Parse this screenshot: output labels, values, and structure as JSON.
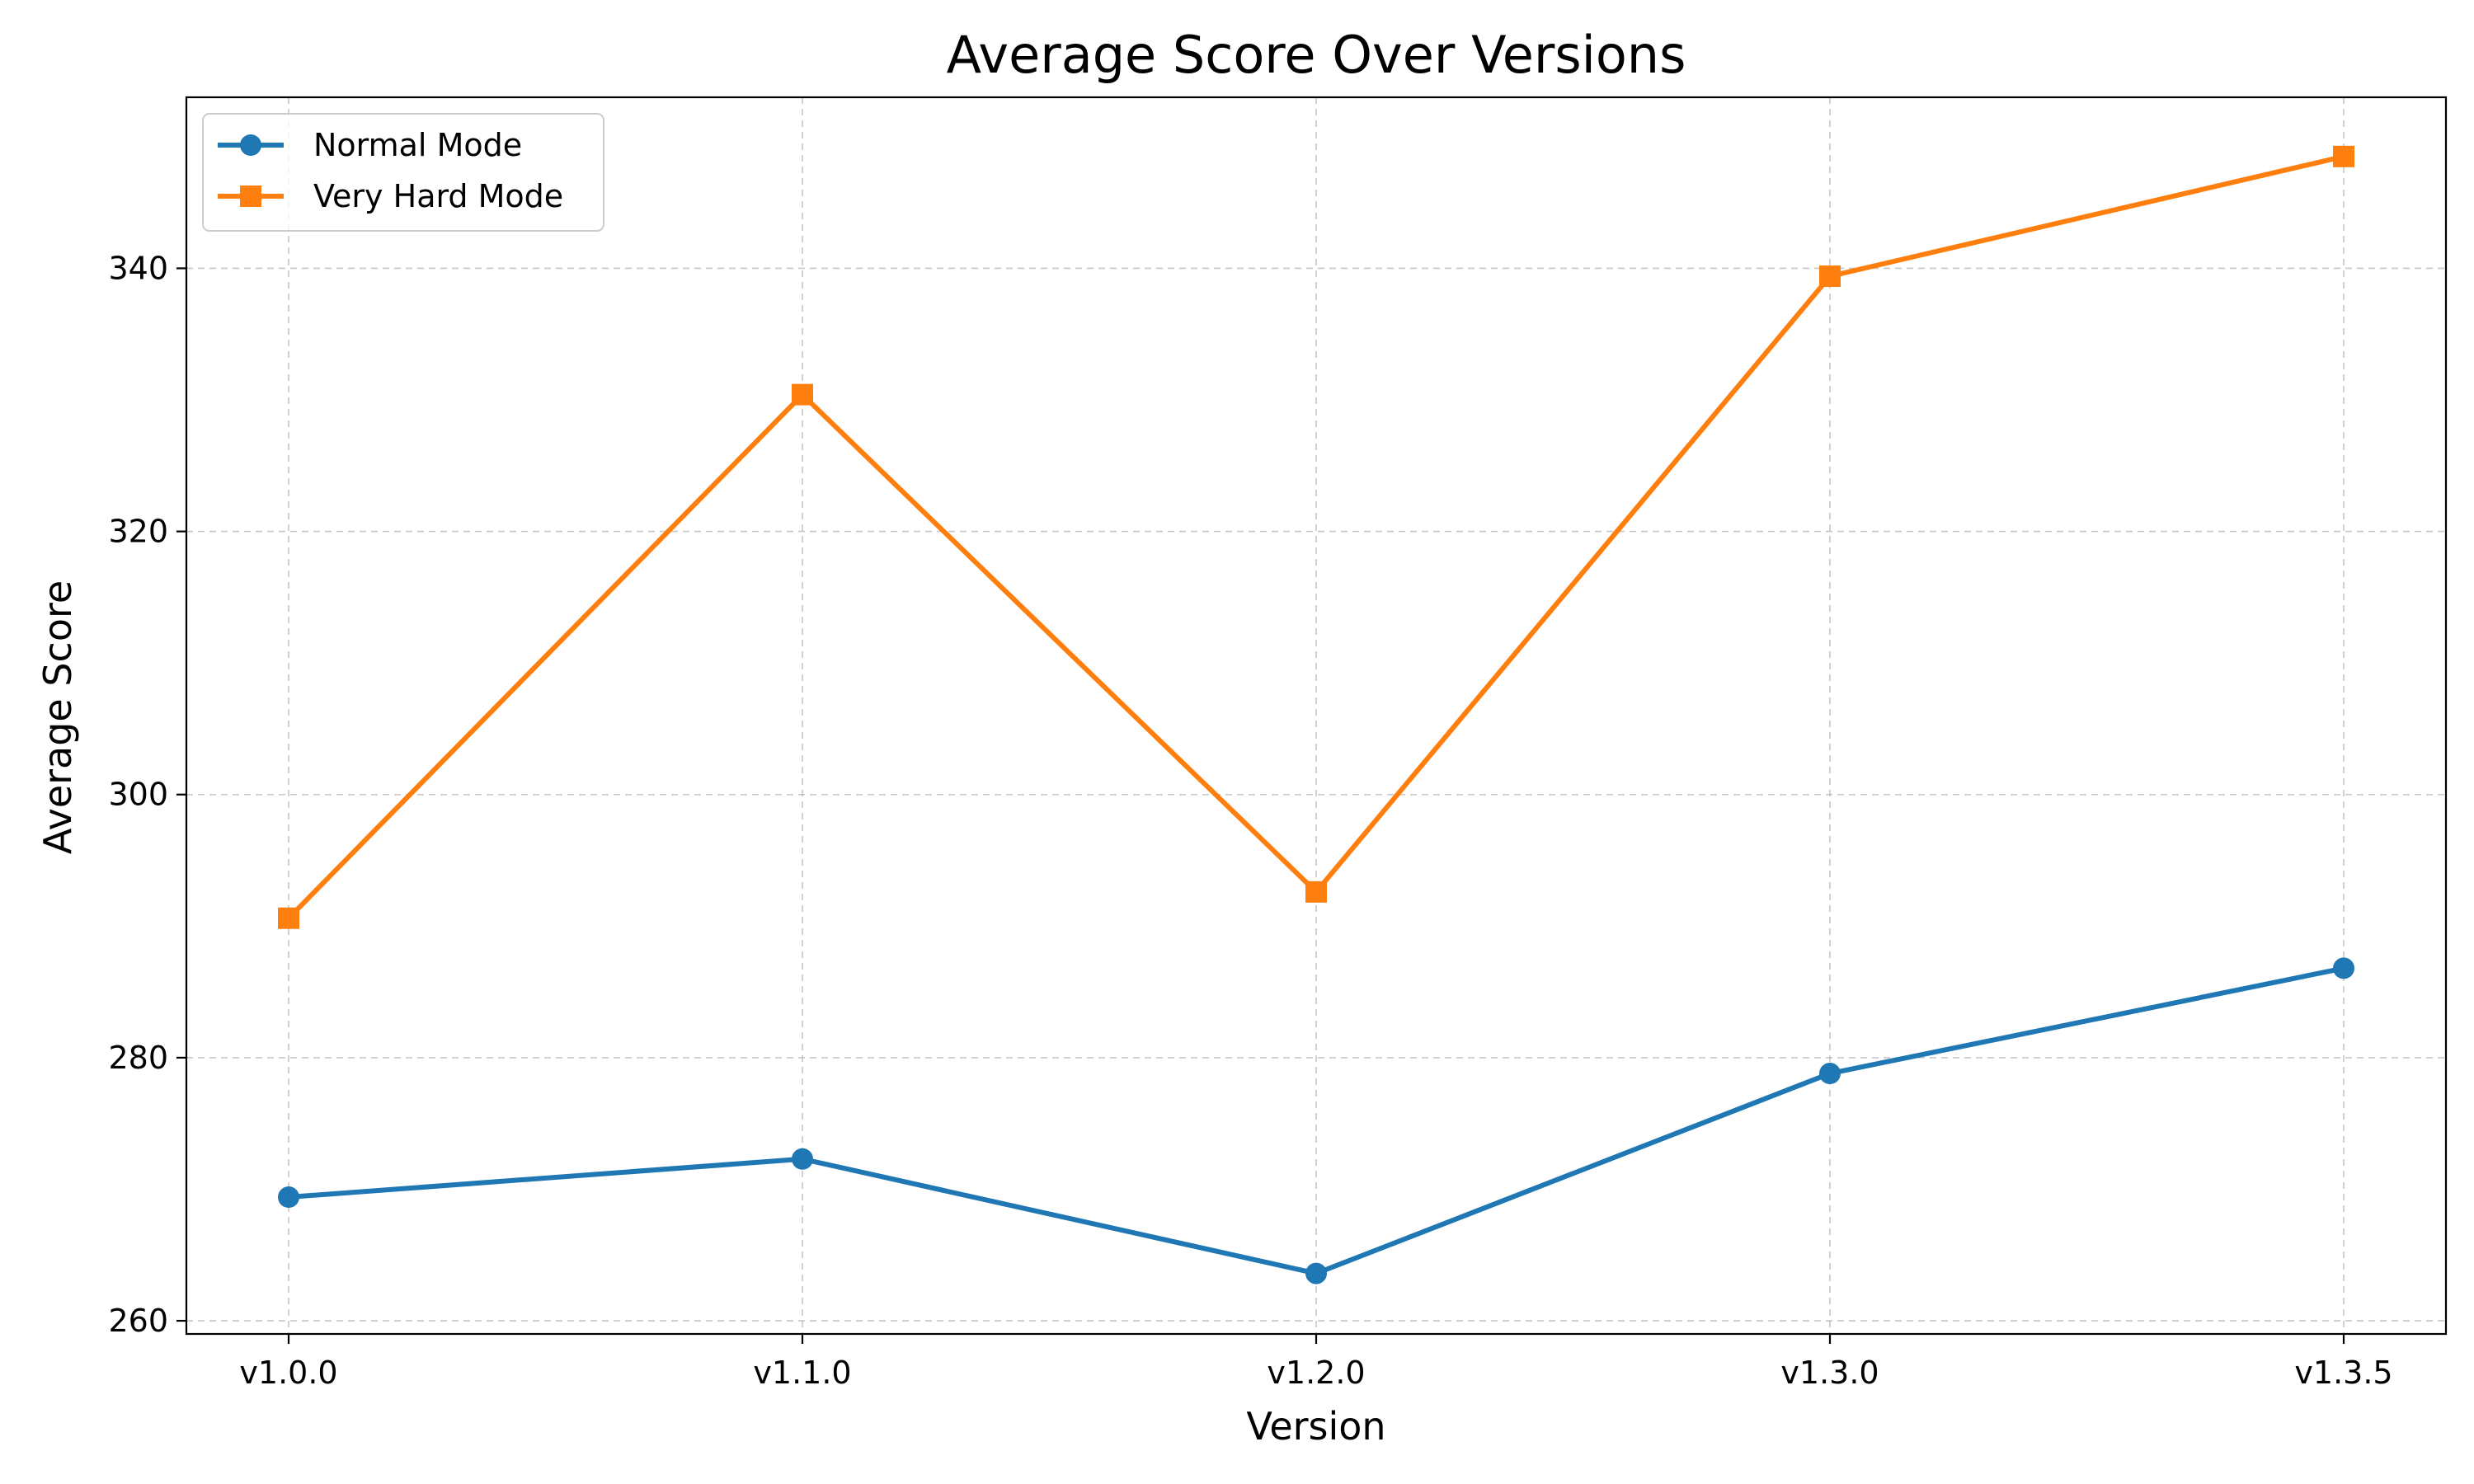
{
  "chart_data": {
    "type": "line",
    "title": "Average Score Over Versions",
    "xlabel": "Version",
    "ylabel": "Average Score",
    "categories": [
      "v1.0.0",
      "v1.1.0",
      "v1.2.0",
      "v1.3.0",
      "v1.3.5"
    ],
    "ylim": [
      259,
      353
    ],
    "yticks": [
      260,
      280,
      300,
      320,
      340
    ],
    "grid": true,
    "legend_position": "top-left",
    "series": [
      {
        "name": "Normal Mode",
        "color": "#1f77b4",
        "marker": "circle",
        "values": [
          269.4,
          272.3,
          263.6,
          278.8,
          286.8
        ]
      },
      {
        "name": "Very Hard Mode",
        "color": "#ff7f0e",
        "marker": "square",
        "values": [
          290.6,
          330.4,
          292.6,
          339.4,
          348.5
        ]
      }
    ]
  }
}
